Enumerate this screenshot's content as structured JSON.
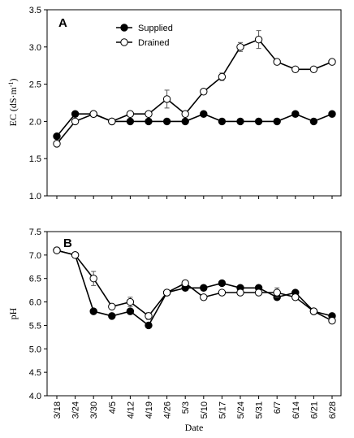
{
  "chart_data": [
    {
      "type": "line",
      "panel_label": "A",
      "ylabel": "EC (dS·m⁻¹)",
      "ylabel_main": "EC (dS·m",
      "ylabel_sup": "-1",
      "ylabel_end": ")",
      "xlabel": "",
      "ylim": [
        1.0,
        3.5
      ],
      "yticks": [
        "1.0",
        "1.5",
        "2.0",
        "2.5",
        "3.0",
        "3.5"
      ],
      "grid": false,
      "legend_position": "top-center",
      "categories": [
        "3/18",
        "3/24",
        "3/30",
        "4/5",
        "4/12",
        "4/19",
        "4/26",
        "5/3",
        "5/10",
        "5/17",
        "5/24",
        "5/31",
        "6/7",
        "6/14",
        "6/21",
        "6/28"
      ],
      "series": [
        {
          "name": "Supplied",
          "marker": "filled-circle",
          "values": [
            1.8,
            2.1,
            2.1,
            2.0,
            2.0,
            2.0,
            2.0,
            2.0,
            2.1,
            2.0,
            2.0,
            2.0,
            2.0,
            2.1,
            2.0,
            2.1
          ],
          "errors": [
            0,
            0,
            0,
            0,
            0,
            0,
            0,
            0,
            0,
            0,
            0,
            0,
            0,
            0,
            0,
            0
          ]
        },
        {
          "name": "Drained",
          "marker": "open-circle",
          "values": [
            1.7,
            2.0,
            2.1,
            2.0,
            2.1,
            2.1,
            2.3,
            2.1,
            2.4,
            2.6,
            3.0,
            3.1,
            2.8,
            2.7,
            2.7,
            2.8
          ],
          "errors": [
            0,
            0,
            0,
            0,
            0,
            0,
            0.12,
            0,
            0,
            0.05,
            0.06,
            0.12,
            0,
            0,
            0,
            0
          ]
        }
      ]
    },
    {
      "type": "line",
      "panel_label": "B",
      "ylabel": "pH",
      "xlabel": "Date",
      "ylim": [
        4.0,
        7.5
      ],
      "yticks": [
        "4.0",
        "4.5",
        "5.0",
        "5.5",
        "6.0",
        "6.5",
        "7.0",
        "7.5"
      ],
      "grid": false,
      "categories": [
        "3/18",
        "3/24",
        "3/30",
        "4/5",
        "4/12",
        "4/19",
        "4/26",
        "5/3",
        "5/10",
        "5/17",
        "5/24",
        "5/31",
        "6/7",
        "6/14",
        "6/21",
        "6/28"
      ],
      "series": [
        {
          "name": "Supplied",
          "marker": "filled-circle",
          "values": [
            7.1,
            7.0,
            5.8,
            5.7,
            5.8,
            5.5,
            6.2,
            6.3,
            6.3,
            6.4,
            6.3,
            6.3,
            6.1,
            6.2,
            5.8,
            5.7
          ],
          "errors": [
            0,
            0,
            0,
            0,
            0,
            0,
            0,
            0,
            0,
            0,
            0,
            0,
            0,
            0,
            0,
            0
          ]
        },
        {
          "name": "Drained",
          "marker": "open-circle",
          "values": [
            7.1,
            7.0,
            6.5,
            5.9,
            6.0,
            5.7,
            6.2,
            6.4,
            6.1,
            6.2,
            6.2,
            6.2,
            6.2,
            6.1,
            5.8,
            5.6
          ],
          "errors": [
            0,
            0,
            0.15,
            0,
            0.1,
            0.07,
            0,
            0,
            0,
            0,
            0,
            0,
            0.1,
            0,
            0,
            0
          ]
        }
      ]
    }
  ]
}
